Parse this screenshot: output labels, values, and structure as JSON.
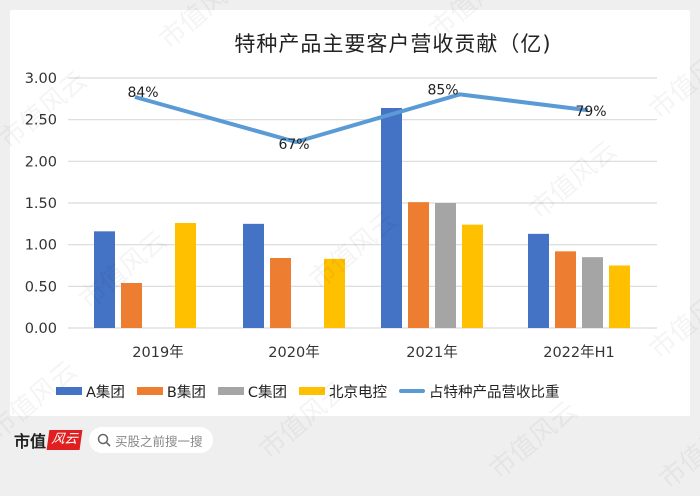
{
  "chart_data": {
    "type": "bar",
    "title": "特种产品主要客户营收贡献（亿)",
    "categories": [
      "2019年",
      "2020年",
      "2021年",
      "2022年H1"
    ],
    "series": [
      {
        "name": "A集团",
        "type": "bar",
        "color": "#4472c4",
        "values": [
          1.16,
          1.25,
          2.64,
          1.13
        ]
      },
      {
        "name": "B集团",
        "type": "bar",
        "color": "#ed7d31",
        "values": [
          0.54,
          0.84,
          1.51,
          0.92
        ]
      },
      {
        "name": "C集团",
        "type": "bar",
        "color": "#a5a5a5",
        "values": [
          null,
          null,
          1.5,
          0.85
        ]
      },
      {
        "name": "北京电控",
        "type": "bar",
        "color": "#ffc000",
        "values": [
          1.26,
          0.83,
          1.24,
          0.75
        ]
      },
      {
        "name": "占特种产品营收比重",
        "type": "line",
        "color": "#5b9bd5",
        "values": [
          0.84,
          0.67,
          0.85,
          0.79
        ],
        "labels": [
          "84%",
          "67%",
          "85%",
          "79%"
        ]
      }
    ],
    "xlabel": "",
    "ylabel": "",
    "ylim": [
      0,
      3.0
    ],
    "yticks": [
      "0.00",
      "0.50",
      "1.00",
      "1.50",
      "2.00",
      "2.50",
      "3.00"
    ],
    "grid": true,
    "legend_position": "bottom"
  },
  "legend": {
    "items": [
      {
        "label": "A集团",
        "color": "#4472c4",
        "kind": "bar"
      },
      {
        "label": "B集团",
        "color": "#ed7d31",
        "kind": "bar"
      },
      {
        "label": "C集团",
        "color": "#a5a5a5",
        "kind": "bar"
      },
      {
        "label": "北京电控",
        "color": "#ffc000",
        "kind": "bar"
      },
      {
        "label": "占特种产品营收比重",
        "color": "#5b9bd5",
        "kind": "line"
      }
    ]
  },
  "footer": {
    "brand_text": "市值",
    "brand_logo_text": "风云",
    "search_placeholder": "买股之前搜一搜"
  },
  "watermark": "市值风云"
}
